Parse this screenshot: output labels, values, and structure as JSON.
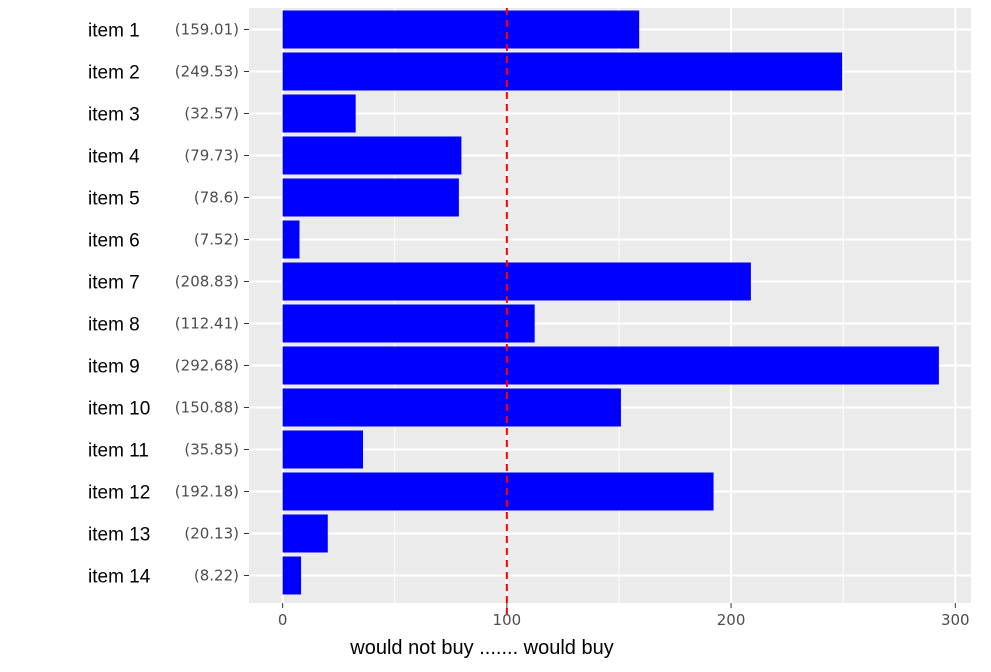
{
  "chart_data": {
    "type": "bar",
    "orientation": "horizontal",
    "categories": [
      "item 1",
      "item 2",
      "item 3",
      "item 4",
      "item 5",
      "item 6",
      "item 7",
      "item 8",
      "item 9",
      "item 10",
      "item 11",
      "item 12",
      "item 13",
      "item 14"
    ],
    "tick_labels": [
      "(159.01)",
      "(249.53)",
      "(32.57)",
      "(79.73)",
      "(78.6)",
      "(7.52)",
      "(208.83)",
      "(112.41)",
      "(292.68)",
      "(150.88)",
      "(35.85)",
      "(192.18)",
      "(20.13)",
      "(8.22)"
    ],
    "values": [
      159.01,
      249.53,
      32.57,
      79.73,
      78.6,
      7.52,
      208.83,
      112.41,
      292.68,
      150.88,
      35.85,
      192.18,
      20.13,
      8.22
    ],
    "xlabel": "would not buy ....... would buy",
    "xlim": [
      -15,
      307
    ],
    "xticks": [
      "0",
      "100",
      "200",
      "300"
    ],
    "reference_line": {
      "value": 100,
      "style": "dashed"
    },
    "grid": true,
    "legend": "none",
    "colors": {
      "bar": "#0000ff",
      "reference_line": "#ff0000",
      "panel": "#ebebeb",
      "grid": "#ffffff"
    }
  }
}
